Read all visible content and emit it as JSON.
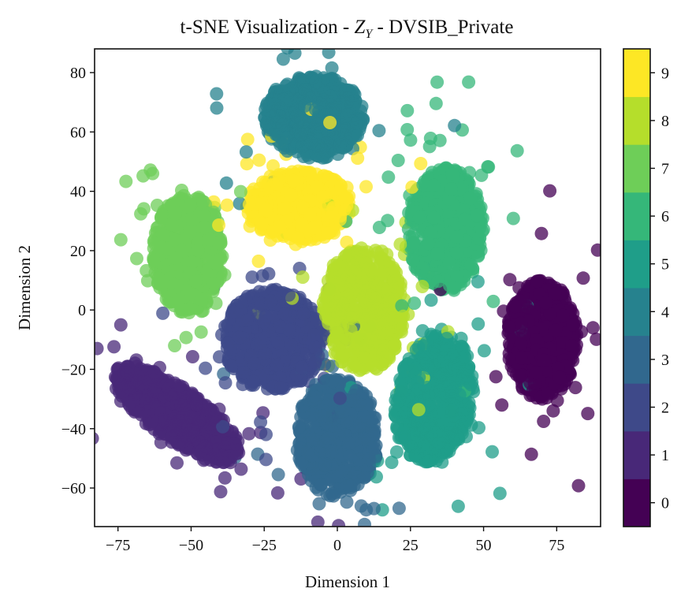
{
  "chart_data": {
    "type": "scatter",
    "title_prefix": "t-SNE Visualization - ",
    "title_var": "Z",
    "title_sub": "Y",
    "title_suffix": " - DVSIB_Private",
    "xlabel": "Dimension 1",
    "ylabel": "Dimension 2",
    "xlim": [
      -83,
      90
    ],
    "ylim": [
      -73,
      88
    ],
    "xticks": [
      -75,
      -50,
      -25,
      0,
      25,
      50,
      75
    ],
    "xtick_labels": [
      "−75",
      "−50",
      "−25",
      "0",
      "25",
      "50",
      "75"
    ],
    "yticks": [
      -60,
      -40,
      -20,
      0,
      20,
      40,
      60,
      80
    ],
    "ytick_labels": [
      "−60",
      "−40",
      "−20",
      "0",
      "20",
      "40",
      "60",
      "80"
    ],
    "colorbar": {
      "range": [
        -0.5,
        9.5
      ],
      "ticks": [
        0,
        1,
        2,
        3,
        4,
        5,
        6,
        7,
        8,
        9
      ],
      "tick_labels": [
        "0",
        "1",
        "2",
        "3",
        "4",
        "5",
        "6",
        "7",
        "8",
        "9"
      ],
      "colors": [
        "#440154",
        "#482878",
        "#3e4989",
        "#31688e",
        "#26828e",
        "#1f9e89",
        "#35b779",
        "#6ece58",
        "#b5de2b",
        "#fde725"
      ]
    },
    "point_alpha": 0.75,
    "clusters": [
      {
        "label": 0,
        "center": [
          70,
          -10
        ],
        "radius": [
          12,
          20
        ],
        "angle": 0
      },
      {
        "label": 1,
        "center": [
          -55,
          -35
        ],
        "radius": [
          26,
          9
        ],
        "angle": -35
      },
      {
        "label": 2,
        "center": [
          -22,
          -10
        ],
        "radius": [
          17,
          17
        ],
        "angle": 0
      },
      {
        "label": 3,
        "center": [
          0,
          -43
        ],
        "radius": [
          14,
          20
        ],
        "angle": 0
      },
      {
        "label": 4,
        "center": [
          -8,
          65
        ],
        "radius": [
          17,
          14
        ],
        "angle": 0
      },
      {
        "label": 5,
        "center": [
          33,
          -30
        ],
        "radius": [
          13,
          22
        ],
        "angle": -10
      },
      {
        "label": 6,
        "center": [
          37,
          27
        ],
        "radius": [
          13,
          21
        ],
        "angle": 0
      },
      {
        "label": 7,
        "center": [
          -51,
          19
        ],
        "radius": [
          12,
          20
        ],
        "angle": 0
      },
      {
        "label": 8,
        "center": [
          9,
          0
        ],
        "radius": [
          14,
          21
        ],
        "angle": 0
      },
      {
        "label": 9,
        "center": [
          -13,
          35
        ],
        "radius": [
          18,
          12
        ],
        "angle": 0
      }
    ],
    "points_per_cluster": 620
  }
}
